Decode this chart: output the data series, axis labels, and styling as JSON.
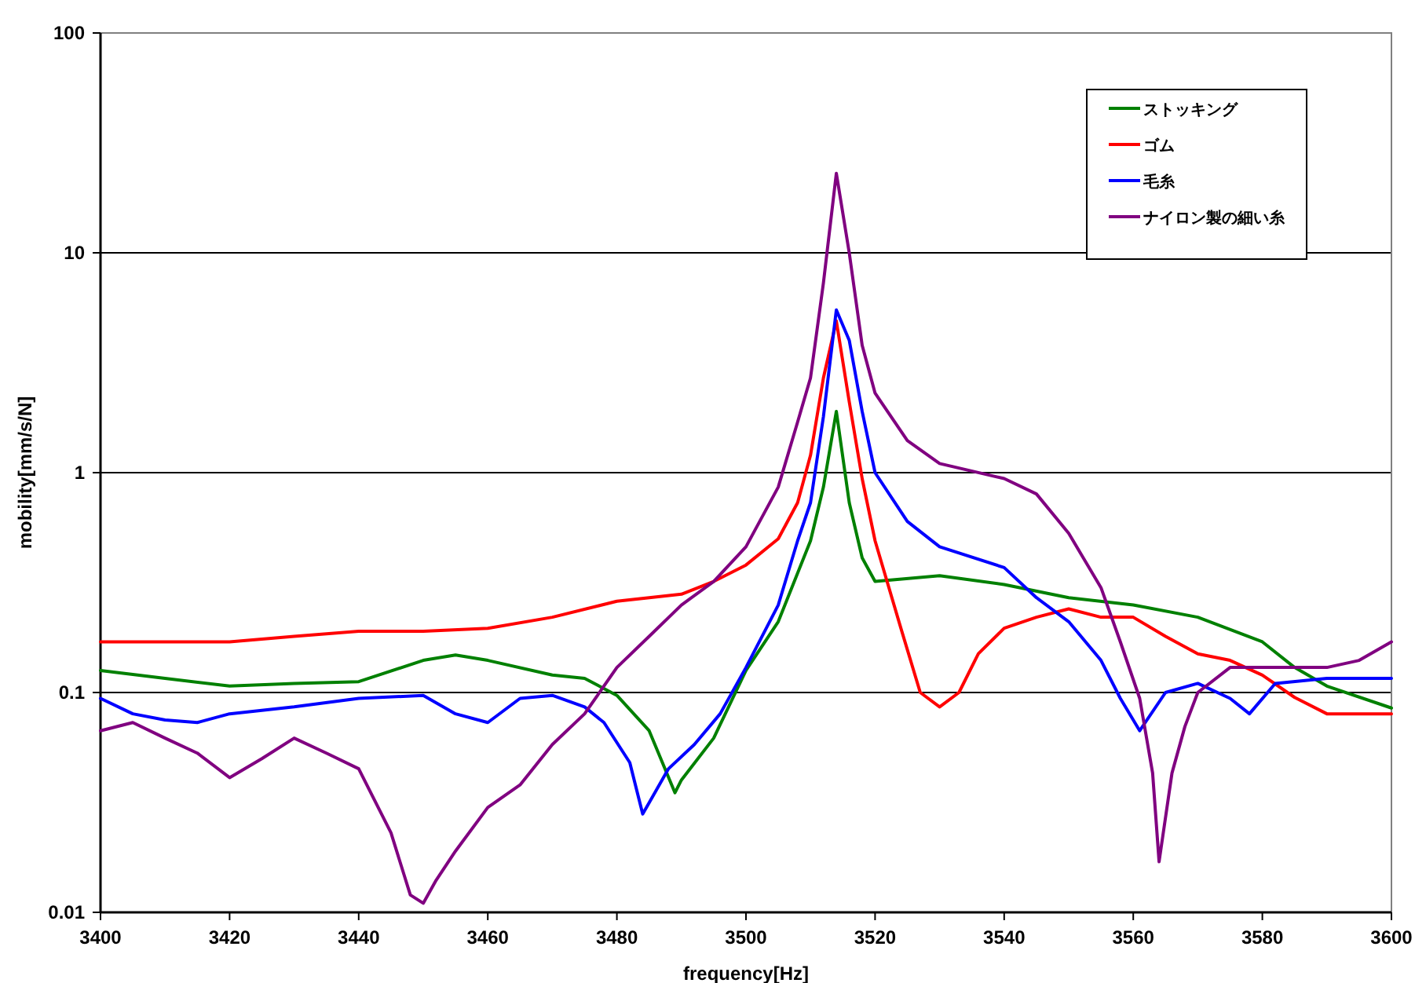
{
  "chart_data": {
    "type": "line",
    "xlabel": "frequency[Hz]",
    "ylabel": "mobility[mm/s/N]",
    "log": "y",
    "grid": "y",
    "legend": "top right",
    "xlim": [
      3400,
      3600
    ],
    "xticks": [
      3400,
      3420,
      3440,
      3460,
      3480,
      3500,
      3520,
      3540,
      3560,
      3580,
      3600
    ],
    "ylim": [
      0.01,
      100
    ],
    "yticks": [
      0.01,
      0.1,
      1,
      10,
      100
    ],
    "series": [
      {
        "name": "ストッキング",
        "color": "#008000",
        "x": [
          3400,
          3410,
          3420,
          3430,
          3440,
          3450,
          3455,
          3460,
          3470,
          3475,
          3480,
          3485,
          3489,
          3490,
          3495,
          3500,
          3505,
          3510,
          3512,
          3514,
          3516,
          3518,
          3520,
          3530,
          3540,
          3550,
          3560,
          3570,
          3580,
          3585,
          3590,
          3600
        ],
        "values": [
          0.126,
          0.116,
          0.107,
          0.11,
          0.112,
          0.14,
          0.148,
          0.14,
          0.12,
          0.116,
          0.097,
          0.067,
          0.035,
          0.04,
          0.062,
          0.126,
          0.21,
          0.49,
          0.86,
          1.9,
          0.73,
          0.41,
          0.32,
          0.34,
          0.31,
          0.27,
          0.25,
          0.22,
          0.17,
          0.13,
          0.107,
          0.085
        ]
      },
      {
        "name": "ゴム",
        "color": "#ff0000",
        "x": [
          3400,
          3410,
          3420,
          3430,
          3440,
          3450,
          3460,
          3470,
          3480,
          3490,
          3495,
          3500,
          3505,
          3508,
          3510,
          3512,
          3514,
          3516,
          3518,
          3520,
          3524,
          3527,
          3530,
          3533,
          3536,
          3540,
          3545,
          3550,
          3555,
          3560,
          3565,
          3570,
          3575,
          3580,
          3585,
          3590,
          3595,
          3600
        ],
        "values": [
          0.17,
          0.17,
          0.17,
          0.18,
          0.19,
          0.19,
          0.196,
          0.22,
          0.26,
          0.28,
          0.32,
          0.38,
          0.5,
          0.73,
          1.2,
          2.7,
          4.9,
          2.1,
          0.94,
          0.49,
          0.196,
          0.1,
          0.086,
          0.1,
          0.15,
          0.196,
          0.22,
          0.24,
          0.22,
          0.22,
          0.18,
          0.15,
          0.14,
          0.12,
          0.095,
          0.08,
          0.08,
          0.08
        ]
      },
      {
        "name": "毛糸",
        "color": "#0000ff",
        "x": [
          3400,
          3405,
          3410,
          3415,
          3420,
          3430,
          3440,
          3450,
          3455,
          3460,
          3465,
          3470,
          3475,
          3478,
          3482,
          3484,
          3488,
          3492,
          3496,
          3500,
          3505,
          3508,
          3510,
          3512,
          3514,
          3516,
          3518,
          3520,
          3525,
          3530,
          3540,
          3545,
          3550,
          3555,
          3558,
          3561,
          3565,
          3570,
          3575,
          3578,
          3582,
          3590,
          3600
        ],
        "values": [
          0.094,
          0.08,
          0.075,
          0.073,
          0.08,
          0.086,
          0.094,
          0.097,
          0.08,
          0.073,
          0.094,
          0.097,
          0.086,
          0.073,
          0.048,
          0.028,
          0.045,
          0.058,
          0.08,
          0.13,
          0.25,
          0.49,
          0.73,
          1.8,
          5.5,
          4.0,
          1.9,
          1.0,
          0.6,
          0.46,
          0.37,
          0.27,
          0.21,
          0.14,
          0.094,
          0.067,
          0.1,
          0.11,
          0.094,
          0.08,
          0.11,
          0.116,
          0.116
        ]
      },
      {
        "name": "ナイロン製の細い糸",
        "color": "#800080",
        "x": [
          3400,
          3405,
          3410,
          3415,
          3420,
          3425,
          3430,
          3435,
          3440,
          3445,
          3448,
          3450,
          3452,
          3455,
          3460,
          3465,
          3470,
          3475,
          3480,
          3485,
          3490,
          3495,
          3500,
          3505,
          3508,
          3510,
          3512,
          3514,
          3516,
          3518,
          3520,
          3525,
          3530,
          3540,
          3545,
          3550,
          3555,
          3558,
          3561,
          3563,
          3564,
          3566,
          3568,
          3570,
          3575,
          3580,
          3590,
          3595,
          3600
        ],
        "values": [
          0.067,
          0.073,
          0.062,
          0.053,
          0.041,
          0.05,
          0.062,
          0.053,
          0.045,
          0.023,
          0.012,
          0.011,
          0.014,
          0.019,
          0.03,
          0.038,
          0.058,
          0.08,
          0.13,
          0.18,
          0.25,
          0.32,
          0.46,
          0.86,
          1.7,
          2.7,
          7.3,
          23,
          10,
          3.8,
          2.3,
          1.4,
          1.1,
          0.94,
          0.8,
          0.53,
          0.3,
          0.17,
          0.094,
          0.043,
          0.017,
          0.043,
          0.07,
          0.1,
          0.13,
          0.13,
          0.13,
          0.14,
          0.17
        ]
      }
    ]
  }
}
